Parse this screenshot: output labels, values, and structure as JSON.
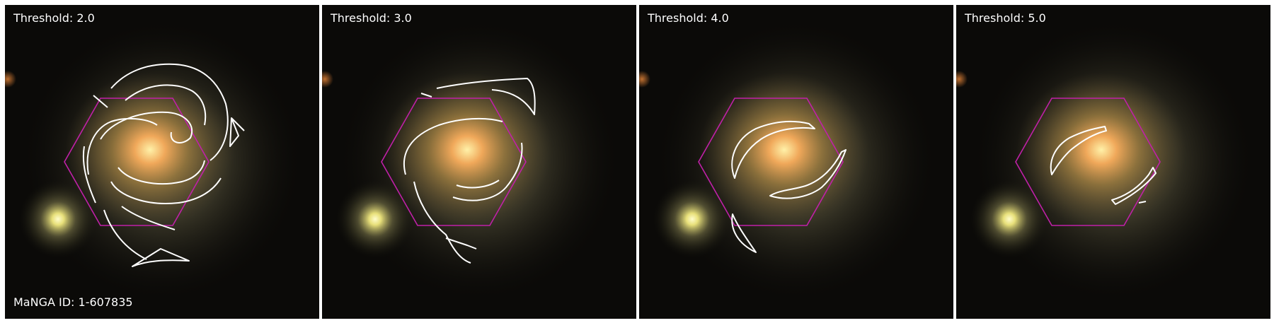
{
  "panels": [
    {
      "threshold_label": "Threshold: 2.0",
      "id_label": "MaNGA ID: 1-607835"
    },
    {
      "threshold_label": "Threshold: 3.0"
    },
    {
      "threshold_label": "Threshold: 4.0"
    },
    {
      "threshold_label": "Threshold: 5.0"
    }
  ],
  "colors": {
    "background": "#0b0a08",
    "galaxy_core": "#ffd27a",
    "hexagon": "#c020a8",
    "contour": "#ffffff",
    "companion_star": "#f4f19a"
  }
}
